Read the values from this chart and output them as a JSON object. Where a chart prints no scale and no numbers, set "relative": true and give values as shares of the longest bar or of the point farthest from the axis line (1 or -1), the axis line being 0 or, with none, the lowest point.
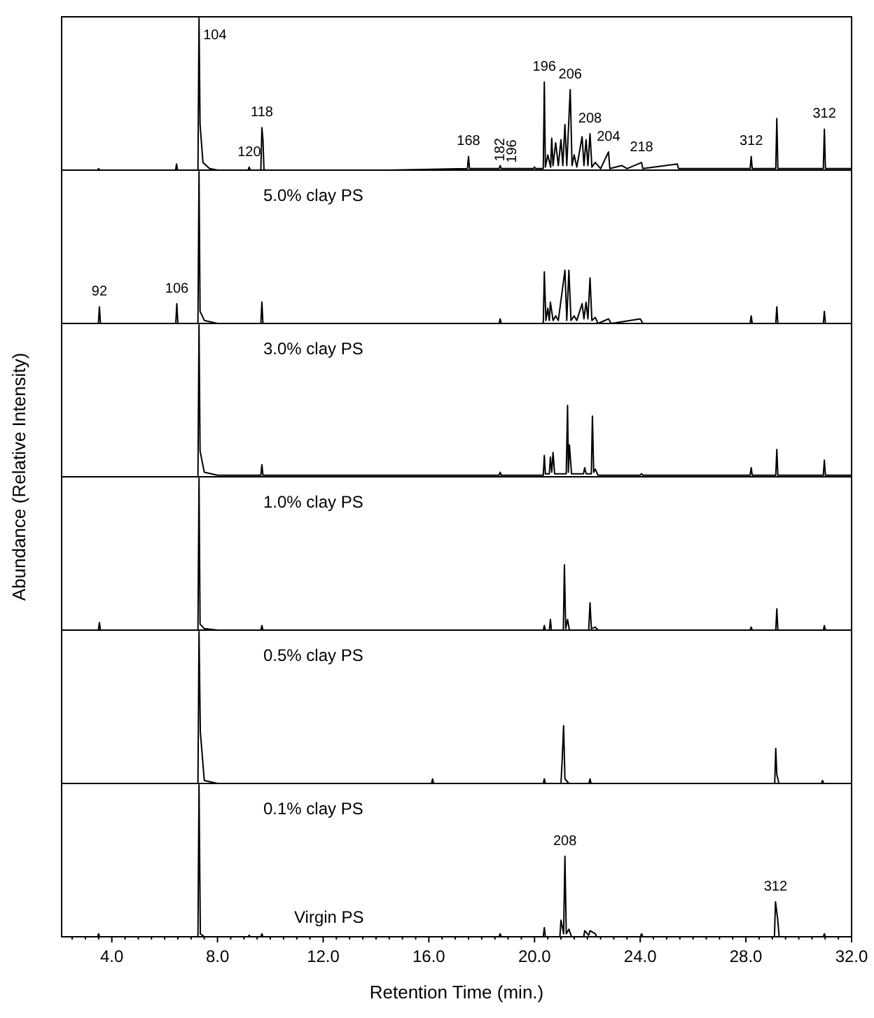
{
  "chart_data": [
    {
      "type": "line",
      "title": "5.0% clay PS",
      "relative": true,
      "xlim": [
        2.1,
        32.0
      ],
      "tick_labels": false,
      "series": [
        {
          "color": "#000000",
          "x": [
            2.1,
            3.46,
            3.5,
            3.54,
            6.41,
            6.45,
            6.49,
            7.26,
            7.3,
            7.34,
            7.45,
            7.7,
            8.0,
            9.16,
            9.2,
            9.24,
            9.64,
            9.68,
            9.72,
            9.76,
            14.5,
            17.46,
            17.5,
            17.54,
            18.66,
            18.7,
            18.74,
            19.96,
            20.0,
            20.04,
            20.33,
            20.37,
            20.41,
            20.5,
            20.61,
            20.65,
            20.7,
            20.8,
            20.9,
            21.0,
            21.07,
            21.15,
            21.22,
            21.35,
            21.42,
            21.5,
            21.6,
            21.8,
            21.87,
            21.95,
            22.02,
            22.1,
            22.17,
            22.3,
            22.5,
            22.8,
            22.85,
            23.3,
            23.5,
            24.05,
            24.1,
            25.4,
            25.45,
            28.16,
            28.2,
            28.24,
            29.13,
            29.17,
            29.21,
            30.93,
            30.97,
            31.01,
            32.0
          ],
          "values": [
            0,
            0,
            0.01,
            0,
            0,
            0.04,
            0,
            0,
            1,
            0.3,
            0.05,
            0.01,
            0,
            0,
            0.02,
            0,
            0,
            0.28,
            0.2,
            0,
            0,
            0.01,
            0.09,
            0.01,
            0.01,
            0.03,
            0.01,
            0.01,
            0.02,
            0.01,
            0.01,
            0.58,
            0.02,
            0.1,
            0.02,
            0.21,
            0.03,
            0.18,
            0.03,
            0.2,
            0.03,
            0.3,
            0.03,
            0.53,
            0.03,
            0.1,
            0.02,
            0.22,
            0.03,
            0.2,
            0.03,
            0.24,
            0.02,
            0.05,
            0.01,
            0.12,
            0.01,
            0.03,
            0.01,
            0.05,
            0.01,
            0.04,
            0.01,
            0.01,
            0.09,
            0.01,
            0.01,
            0.34,
            0.01,
            0.01,
            0.27,
            0.01,
            0.01
          ]
        }
      ],
      "annotations": [
        {
          "text": "104",
          "x": 7.3,
          "y": 1
        },
        {
          "text": "120",
          "x": 9.2,
          "y": 0.02
        },
        {
          "text": "118",
          "x": 9.68,
          "y": 0.28
        },
        {
          "text": "168",
          "x": 17.5,
          "y": 0.09
        },
        {
          "text": "182",
          "x": 18.7,
          "y": 0.03
        },
        {
          "text": "196",
          "x": 19.15,
          "y": 0.02
        },
        {
          "text": "196",
          "x": 20.37,
          "y": 0.58
        },
        {
          "text": "206",
          "x": 21.35,
          "y": 0.53
        },
        {
          "text": "208",
          "x": 22.1,
          "y": 0.24
        },
        {
          "text": "204",
          "x": 22.8,
          "y": 0.12
        },
        {
          "text": "218",
          "x": 24.05,
          "y": 0.05
        },
        {
          "text": "312",
          "x": 28.2,
          "y": 0.09
        },
        {
          "text": "312",
          "x": 30.97,
          "y": 0.27
        }
      ]
    },
    {
      "type": "line",
      "title": "3.0% clay PS",
      "relative": true,
      "xlim": [
        2.1,
        32.0
      ],
      "tick_labels": false,
      "series": [
        {
          "color": "#000000",
          "x": [
            2.1,
            3.49,
            3.53,
            3.57,
            6.42,
            6.46,
            6.5,
            7.26,
            7.3,
            7.34,
            7.5,
            8.0,
            9.64,
            9.68,
            9.72,
            18.66,
            18.7,
            18.74,
            20.33,
            20.37,
            20.43,
            20.5,
            20.56,
            20.6,
            20.7,
            20.8,
            20.9,
            21.15,
            21.22,
            21.3,
            21.38,
            21.5,
            21.6,
            21.8,
            21.87,
            21.95,
            22.02,
            22.1,
            22.17,
            22.3,
            22.4,
            22.8,
            22.9,
            24.0,
            24.1,
            28.16,
            28.2,
            28.24,
            29.13,
            29.17,
            29.21,
            30.93,
            30.97,
            31.01,
            32.0
          ],
          "values": [
            0,
            0,
            0.11,
            0,
            0,
            0.13,
            0,
            0,
            1,
            0.08,
            0.02,
            0,
            0,
            0.14,
            0,
            0,
            0.03,
            0,
            0,
            0.34,
            0.02,
            0.1,
            0.02,
            0.14,
            0.02,
            0.05,
            0.02,
            0.35,
            0.02,
            0.35,
            0.02,
            0.05,
            0.02,
            0.13,
            0.03,
            0.14,
            0.03,
            0.3,
            0.02,
            0.04,
            0,
            0.03,
            0,
            0.03,
            0,
            0,
            0.05,
            0,
            0,
            0.11,
            0,
            0,
            0.08,
            0,
            0
          ]
        }
      ],
      "annotations": [
        {
          "text": "92",
          "x": 3.53,
          "y": 0.11
        },
        {
          "text": "106",
          "x": 6.46,
          "y": 0.13
        }
      ]
    },
    {
      "type": "line",
      "title": "1.0% clay PS",
      "ylabel": "Abundance (Relative Intensity)",
      "relative": true,
      "xlim": [
        2.1,
        32.0
      ],
      "tick_labels": false,
      "series": [
        {
          "color": "#000000",
          "x": [
            2.1,
            7.26,
            7.3,
            7.34,
            7.5,
            8.0,
            9.64,
            9.68,
            9.72,
            18.66,
            18.7,
            18.74,
            20.33,
            20.37,
            20.41,
            20.56,
            20.6,
            20.65,
            20.7,
            20.76,
            21.2,
            21.25,
            21.28,
            21.32,
            21.4,
            21.85,
            21.9,
            21.95,
            22.15,
            22.19,
            22.24,
            22.3,
            22.4,
            24.0,
            24.05,
            24.1,
            28.16,
            28.2,
            28.24,
            29.13,
            29.17,
            29.21,
            30.93,
            30.97,
            31.01,
            32.0
          ],
          "values": [
            0,
            0,
            1,
            0.17,
            0.03,
            0.01,
            0.01,
            0.08,
            0.01,
            0.01,
            0.03,
            0.01,
            0.01,
            0.14,
            0.02,
            0.02,
            0.13,
            0.03,
            0.16,
            0.02,
            0.02,
            0.47,
            0.03,
            0.21,
            0.02,
            0.02,
            0.06,
            0.02,
            0.02,
            0.4,
            0.03,
            0.05,
            0.01,
            0.01,
            0.02,
            0.01,
            0.01,
            0.06,
            0.01,
            0.01,
            0.18,
            0.01,
            0.01,
            0.11,
            0.01,
            0.01
          ]
        }
      ]
    },
    {
      "type": "line",
      "title": "0.5% clay PS",
      "relative": true,
      "xlim": [
        2.1,
        32.0
      ],
      "tick_labels": false,
      "series": [
        {
          "color": "#000000",
          "x": [
            2.1,
            3.49,
            3.53,
            3.57,
            7.26,
            7.3,
            7.34,
            7.5,
            8.0,
            9.64,
            9.68,
            9.72,
            20.33,
            20.37,
            20.41,
            20.56,
            20.6,
            20.64,
            21.09,
            21.13,
            21.18,
            21.25,
            21.32,
            22.05,
            22.1,
            22.15,
            22.3,
            22.4,
            28.16,
            28.2,
            28.24,
            29.13,
            29.17,
            29.21,
            30.93,
            30.97,
            31.01,
            32.0
          ],
          "values": [
            0,
            0,
            0.05,
            0,
            0,
            1,
            0.04,
            0.01,
            0,
            0,
            0.03,
            0,
            0,
            0.03,
            0,
            0,
            0.07,
            0,
            0,
            0.43,
            0.01,
            0.07,
            0,
            0,
            0.18,
            0.01,
            0.02,
            0,
            0,
            0.02,
            0,
            0,
            0.14,
            0,
            0,
            0.03,
            0,
            0
          ]
        }
      ]
    },
    {
      "type": "line",
      "title": "0.1% clay PS",
      "relative": true,
      "xlim": [
        2.1,
        32.0
      ],
      "tick_labels": false,
      "series": [
        {
          "color": "#000000",
          "x": [
            2.1,
            7.26,
            7.3,
            7.35,
            7.5,
            8.0,
            16.1,
            16.14,
            16.18,
            20.33,
            20.37,
            20.41,
            21.0,
            21.05,
            21.1,
            21.15,
            21.3,
            22.06,
            22.1,
            22.14,
            29.09,
            29.13,
            29.17,
            29.25,
            30.86,
            30.9,
            30.94,
            32.0
          ],
          "values": [
            0,
            0,
            1,
            0.34,
            0.02,
            0,
            0,
            0.03,
            0,
            0,
            0.03,
            0,
            0,
            0.17,
            0.38,
            0.03,
            0,
            0,
            0.03,
            0,
            0,
            0.23,
            0.06,
            0,
            0,
            0.02,
            0,
            0
          ]
        }
      ]
    },
    {
      "type": "line",
      "title": "Virgin PS",
      "xlabel": "Retention Time (min.)",
      "relative": true,
      "xlim": [
        2.1,
        32.0
      ],
      "xticks": [
        {
          "value": 2.5,
          "label": null
        },
        {
          "value": 3,
          "label": null
        },
        {
          "value": 3.5,
          "label": null
        },
        {
          "value": 4,
          "label": "4.0"
        },
        {
          "value": 4.5,
          "label": null
        },
        {
          "value": 5,
          "label": null
        },
        {
          "value": 5.5,
          "label": null
        },
        {
          "value": 6,
          "label": null
        },
        {
          "value": 6.5,
          "label": null
        },
        {
          "value": 7,
          "label": null
        },
        {
          "value": 7.5,
          "label": null
        },
        {
          "value": 8,
          "label": "8.0"
        },
        {
          "value": 8.5,
          "label": null
        },
        {
          "value": 9,
          "label": null
        },
        {
          "value": 9.5,
          "label": null
        },
        {
          "value": 10,
          "label": null
        },
        {
          "value": 10.5,
          "label": null
        },
        {
          "value": 11,
          "label": null
        },
        {
          "value": 11.5,
          "label": null
        },
        {
          "value": 12,
          "label": "12.0"
        },
        {
          "value": 12.5,
          "label": null
        },
        {
          "value": 13,
          "label": null
        },
        {
          "value": 13.5,
          "label": null
        },
        {
          "value": 14,
          "label": null
        },
        {
          "value": 14.5,
          "label": null
        },
        {
          "value": 15,
          "label": null
        },
        {
          "value": 15.5,
          "label": null
        },
        {
          "value": 16,
          "label": "16.0"
        },
        {
          "value": 16.5,
          "label": null
        },
        {
          "value": 17,
          "label": null
        },
        {
          "value": 17.5,
          "label": null
        },
        {
          "value": 18,
          "label": null
        },
        {
          "value": 18.5,
          "label": null
        },
        {
          "value": 19,
          "label": null
        },
        {
          "value": 19.5,
          "label": null
        },
        {
          "value": 20,
          "label": "20.0"
        },
        {
          "value": 20.5,
          "label": null
        },
        {
          "value": 21,
          "label": null
        },
        {
          "value": 21.5,
          "label": null
        },
        {
          "value": 22,
          "label": null
        },
        {
          "value": 22.5,
          "label": null
        },
        {
          "value": 23,
          "label": null
        },
        {
          "value": 23.5,
          "label": null
        },
        {
          "value": 24,
          "label": "24.0"
        },
        {
          "value": 24.5,
          "label": null
        },
        {
          "value": 25,
          "label": null
        },
        {
          "value": 25.5,
          "label": null
        },
        {
          "value": 26,
          "label": null
        },
        {
          "value": 26.5,
          "label": null
        },
        {
          "value": 27,
          "label": null
        },
        {
          "value": 27.5,
          "label": null
        },
        {
          "value": 28,
          "label": "28.0"
        },
        {
          "value": 28.5,
          "label": null
        },
        {
          "value": 29,
          "label": null
        },
        {
          "value": 29.5,
          "label": null
        },
        {
          "value": 30,
          "label": null
        },
        {
          "value": 30.5,
          "label": null
        },
        {
          "value": 31,
          "label": null
        },
        {
          "value": 31.5,
          "label": null
        },
        {
          "value": 32,
          "label": "32.0"
        }
      ],
      "series": [
        {
          "color": "#000000",
          "x": [
            2.1,
            3.46,
            3.5,
            3.54,
            7.26,
            7.3,
            7.35,
            7.5,
            9.16,
            9.2,
            9.24,
            9.64,
            9.68,
            9.72,
            18.66,
            18.7,
            18.74,
            20.33,
            20.37,
            20.41,
            20.96,
            21.0,
            21.1,
            21.15,
            21.2,
            21.3,
            21.4,
            21.86,
            21.9,
            22.05,
            22.1,
            22.3,
            22.35,
            24.0,
            24.05,
            24.1,
            29.08,
            29.12,
            29.2,
            29.26,
            30.93,
            30.97,
            31.01,
            32.0
          ],
          "values": [
            0,
            0,
            0.02,
            0,
            0,
            1,
            0.02,
            0,
            0,
            0.01,
            0,
            0,
            0.02,
            0,
            0,
            0.02,
            0,
            0,
            0.06,
            0,
            0,
            0.11,
            0.02,
            0.53,
            0.02,
            0.05,
            0,
            0,
            0.04,
            0.01,
            0.04,
            0.02,
            0,
            0,
            0.02,
            0,
            0,
            0.23,
            0.12,
            0,
            0,
            0.02,
            0,
            0
          ]
        }
      ],
      "annotations": [
        {
          "text": "208",
          "x": 21.15,
          "y": 0.53
        },
        {
          "text": "312",
          "x": 29.12,
          "y": 0.23
        }
      ]
    }
  ]
}
